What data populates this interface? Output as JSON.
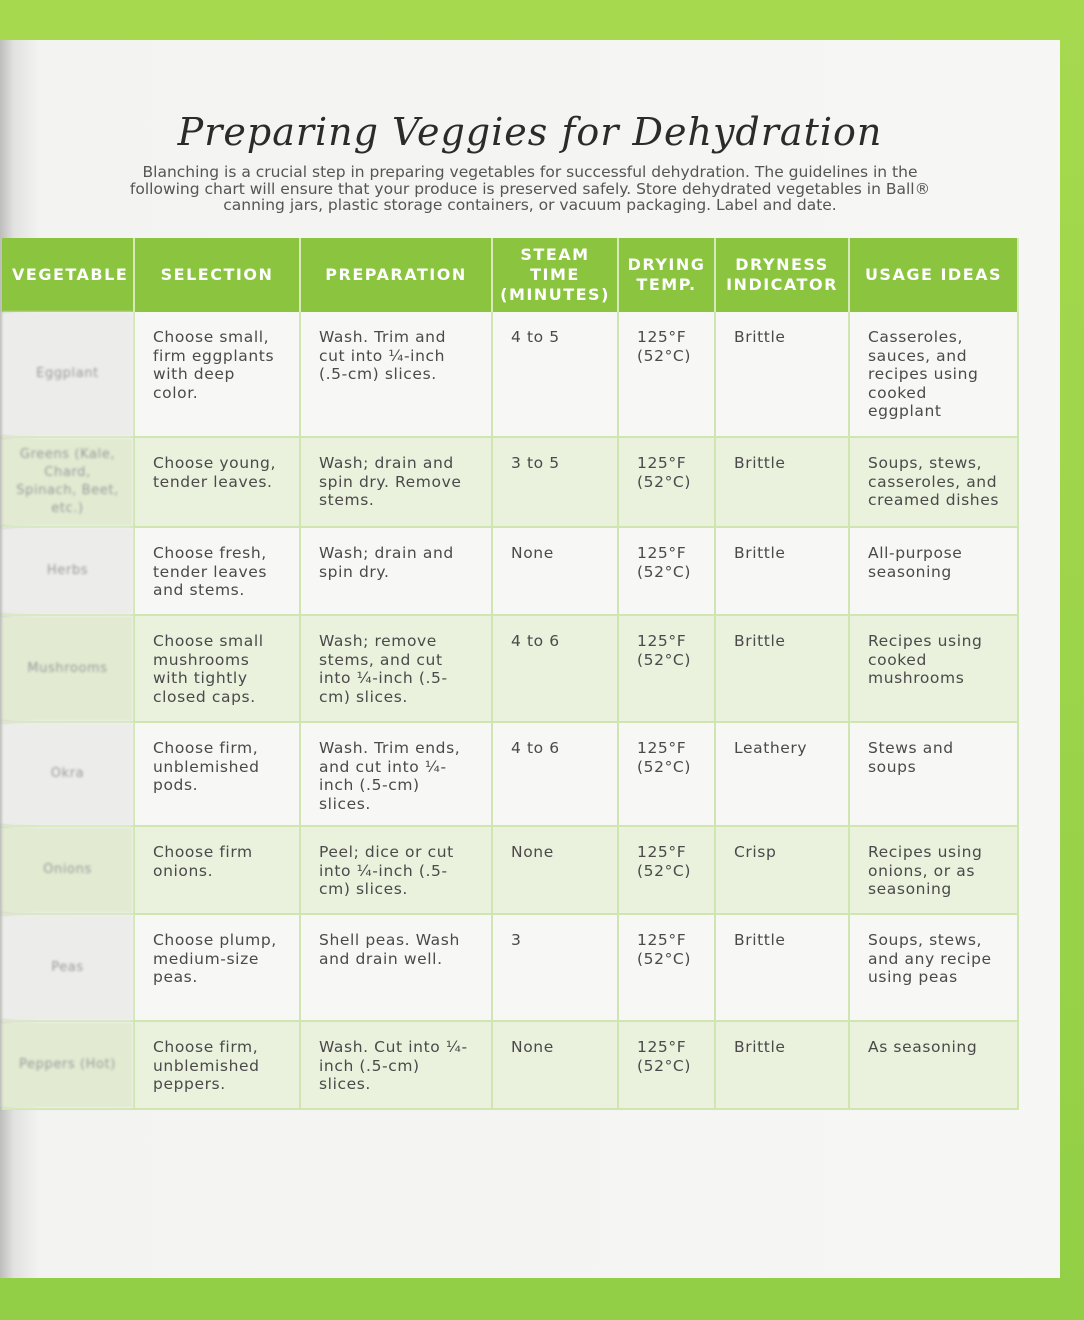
{
  "title": "Preparing Veggies for Dehydration",
  "intro": "Blanching is a crucial step in preparing vegetables for successful dehydration. The guidelines in the following chart will ensure that your produce is preserved safely. Store dehydrated vegetables in Ball® canning jars, plastic storage containers, or vacuum packaging. Label and date.",
  "headers": {
    "vegetable": "VEGETABLE",
    "selection": "SELECTION",
    "preparation": "PREPARATION",
    "steam_time": "STEAM TIME (MINUTES)",
    "drying_temp": "DRYING TEMP.",
    "dryness": "DRYNESS INDICATOR",
    "usage": "USAGE IDEAS"
  },
  "rows": [
    {
      "vegetable": "Eggplant",
      "selection": "Choose small, firm eggplants with deep color.",
      "preparation": "Wash. Trim and cut into ¼-inch (.5-cm) slices.",
      "steam": "4 to 5",
      "temp": "125°F (52°C)",
      "dryness": "Brittle",
      "usage": "Casseroles, sauces, and recipes using cooked eggplant"
    },
    {
      "vegetable": "Greens (Kale, Chard, Spinach, Beet, etc.)",
      "selection": "Choose young, tender leaves.",
      "preparation": "Wash; drain and spin dry. Remove stems.",
      "steam": "3 to 5",
      "temp": "125°F (52°C)",
      "dryness": "Brittle",
      "usage": "Soups, stews, casseroles, and creamed dishes"
    },
    {
      "vegetable": "Herbs",
      "selection": "Choose fresh, tender leaves and stems.",
      "preparation": "Wash; drain and spin dry.",
      "steam": "None",
      "temp": "125°F (52°C)",
      "dryness": "Brittle",
      "usage": "All-purpose seasoning"
    },
    {
      "vegetable": "Mushrooms",
      "selection": "Choose small mushrooms with tightly closed caps.",
      "preparation": "Wash; remove stems, and cut into ¼-inch (.5-cm) slices.",
      "steam": "4 to 6",
      "temp": "125°F (52°C)",
      "dryness": "Brittle",
      "usage": "Recipes using cooked mushrooms"
    },
    {
      "vegetable": "Okra",
      "selection": "Choose firm, unblemished pods.",
      "preparation": "Wash. Trim ends, and cut into ¼-inch (.5-cm) slices.",
      "steam": "4 to 6",
      "temp": "125°F (52°C)",
      "dryness": "Leathery",
      "usage": "Stews and soups"
    },
    {
      "vegetable": "Onions",
      "selection": "Choose firm onions.",
      "preparation": "Peel; dice or cut into ¼-inch (.5-cm) slices.",
      "steam": "None",
      "temp": "125°F (52°C)",
      "dryness": "Crisp",
      "usage": "Recipes using onions, or as seasoning"
    },
    {
      "vegetable": "Peas",
      "selection": "Choose plump, medium-size peas.",
      "preparation": "Shell peas. Wash and drain well.",
      "steam": "3",
      "temp": "125°F (52°C)",
      "dryness": "Brittle",
      "usage": "Soups, stews, and any recipe using peas"
    },
    {
      "vegetable": "Peppers (Hot)",
      "selection": "Choose firm, unblemished peppers.",
      "preparation": "Wash. Cut into ¼-inch (.5-cm) slices.",
      "steam": "None",
      "temp": "125°F (52°C)",
      "dryness": "Brittle",
      "usage": "As seasoning"
    }
  ]
}
